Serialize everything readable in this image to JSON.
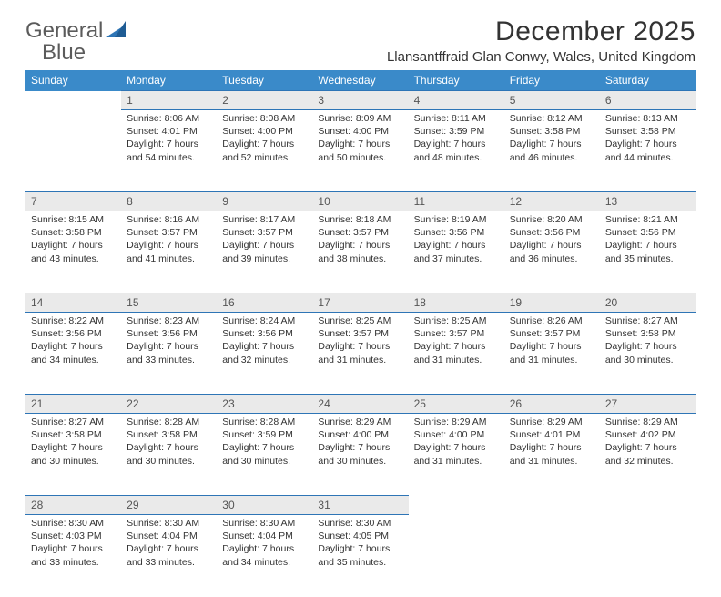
{
  "brand": {
    "part1": "General",
    "part2": "Blue"
  },
  "title": "December 2025",
  "location": "Llansantffraid Glan Conwy, Wales, United Kingdom",
  "colors": {
    "header_bg": "#3a8ac9",
    "header_text": "#ffffff",
    "grid_line": "#2e75b6",
    "daynum_bg": "#eaeaea",
    "text": "#333333",
    "brand_blue": "#2e75b6",
    "brand_gray": "#5b5b5b",
    "page_bg": "#ffffff"
  },
  "typography": {
    "title_fontsize": 30,
    "location_fontsize": 15,
    "header_fontsize": 12,
    "cell_fontsize": 10.5,
    "daynum_fontsize": 12
  },
  "weekdays": [
    "Sunday",
    "Monday",
    "Tuesday",
    "Wednesday",
    "Thursday",
    "Friday",
    "Saturday"
  ],
  "weeks": [
    [
      null,
      {
        "n": "1",
        "sunrise": "Sunrise: 8:06 AM",
        "sunset": "Sunset: 4:01 PM",
        "day": "Daylight: 7 hours and 54 minutes."
      },
      {
        "n": "2",
        "sunrise": "Sunrise: 8:08 AM",
        "sunset": "Sunset: 4:00 PM",
        "day": "Daylight: 7 hours and 52 minutes."
      },
      {
        "n": "3",
        "sunrise": "Sunrise: 8:09 AM",
        "sunset": "Sunset: 4:00 PM",
        "day": "Daylight: 7 hours and 50 minutes."
      },
      {
        "n": "4",
        "sunrise": "Sunrise: 8:11 AM",
        "sunset": "Sunset: 3:59 PM",
        "day": "Daylight: 7 hours and 48 minutes."
      },
      {
        "n": "5",
        "sunrise": "Sunrise: 8:12 AM",
        "sunset": "Sunset: 3:58 PM",
        "day": "Daylight: 7 hours and 46 minutes."
      },
      {
        "n": "6",
        "sunrise": "Sunrise: 8:13 AM",
        "sunset": "Sunset: 3:58 PM",
        "day": "Daylight: 7 hours and 44 minutes."
      }
    ],
    [
      {
        "n": "7",
        "sunrise": "Sunrise: 8:15 AM",
        "sunset": "Sunset: 3:58 PM",
        "day": "Daylight: 7 hours and 43 minutes."
      },
      {
        "n": "8",
        "sunrise": "Sunrise: 8:16 AM",
        "sunset": "Sunset: 3:57 PM",
        "day": "Daylight: 7 hours and 41 minutes."
      },
      {
        "n": "9",
        "sunrise": "Sunrise: 8:17 AM",
        "sunset": "Sunset: 3:57 PM",
        "day": "Daylight: 7 hours and 39 minutes."
      },
      {
        "n": "10",
        "sunrise": "Sunrise: 8:18 AM",
        "sunset": "Sunset: 3:57 PM",
        "day": "Daylight: 7 hours and 38 minutes."
      },
      {
        "n": "11",
        "sunrise": "Sunrise: 8:19 AM",
        "sunset": "Sunset: 3:56 PM",
        "day": "Daylight: 7 hours and 37 minutes."
      },
      {
        "n": "12",
        "sunrise": "Sunrise: 8:20 AM",
        "sunset": "Sunset: 3:56 PM",
        "day": "Daylight: 7 hours and 36 minutes."
      },
      {
        "n": "13",
        "sunrise": "Sunrise: 8:21 AM",
        "sunset": "Sunset: 3:56 PM",
        "day": "Daylight: 7 hours and 35 minutes."
      }
    ],
    [
      {
        "n": "14",
        "sunrise": "Sunrise: 8:22 AM",
        "sunset": "Sunset: 3:56 PM",
        "day": "Daylight: 7 hours and 34 minutes."
      },
      {
        "n": "15",
        "sunrise": "Sunrise: 8:23 AM",
        "sunset": "Sunset: 3:56 PM",
        "day": "Daylight: 7 hours and 33 minutes."
      },
      {
        "n": "16",
        "sunrise": "Sunrise: 8:24 AM",
        "sunset": "Sunset: 3:56 PM",
        "day": "Daylight: 7 hours and 32 minutes."
      },
      {
        "n": "17",
        "sunrise": "Sunrise: 8:25 AM",
        "sunset": "Sunset: 3:57 PM",
        "day": "Daylight: 7 hours and 31 minutes."
      },
      {
        "n": "18",
        "sunrise": "Sunrise: 8:25 AM",
        "sunset": "Sunset: 3:57 PM",
        "day": "Daylight: 7 hours and 31 minutes."
      },
      {
        "n": "19",
        "sunrise": "Sunrise: 8:26 AM",
        "sunset": "Sunset: 3:57 PM",
        "day": "Daylight: 7 hours and 31 minutes."
      },
      {
        "n": "20",
        "sunrise": "Sunrise: 8:27 AM",
        "sunset": "Sunset: 3:58 PM",
        "day": "Daylight: 7 hours and 30 minutes."
      }
    ],
    [
      {
        "n": "21",
        "sunrise": "Sunrise: 8:27 AM",
        "sunset": "Sunset: 3:58 PM",
        "day": "Daylight: 7 hours and 30 minutes."
      },
      {
        "n": "22",
        "sunrise": "Sunrise: 8:28 AM",
        "sunset": "Sunset: 3:58 PM",
        "day": "Daylight: 7 hours and 30 minutes."
      },
      {
        "n": "23",
        "sunrise": "Sunrise: 8:28 AM",
        "sunset": "Sunset: 3:59 PM",
        "day": "Daylight: 7 hours and 30 minutes."
      },
      {
        "n": "24",
        "sunrise": "Sunrise: 8:29 AM",
        "sunset": "Sunset: 4:00 PM",
        "day": "Daylight: 7 hours and 30 minutes."
      },
      {
        "n": "25",
        "sunrise": "Sunrise: 8:29 AM",
        "sunset": "Sunset: 4:00 PM",
        "day": "Daylight: 7 hours and 31 minutes."
      },
      {
        "n": "26",
        "sunrise": "Sunrise: 8:29 AM",
        "sunset": "Sunset: 4:01 PM",
        "day": "Daylight: 7 hours and 31 minutes."
      },
      {
        "n": "27",
        "sunrise": "Sunrise: 8:29 AM",
        "sunset": "Sunset: 4:02 PM",
        "day": "Daylight: 7 hours and 32 minutes."
      }
    ],
    [
      {
        "n": "28",
        "sunrise": "Sunrise: 8:30 AM",
        "sunset": "Sunset: 4:03 PM",
        "day": "Daylight: 7 hours and 33 minutes."
      },
      {
        "n": "29",
        "sunrise": "Sunrise: 8:30 AM",
        "sunset": "Sunset: 4:04 PM",
        "day": "Daylight: 7 hours and 33 minutes."
      },
      {
        "n": "30",
        "sunrise": "Sunrise: 8:30 AM",
        "sunset": "Sunset: 4:04 PM",
        "day": "Daylight: 7 hours and 34 minutes."
      },
      {
        "n": "31",
        "sunrise": "Sunrise: 8:30 AM",
        "sunset": "Sunset: 4:05 PM",
        "day": "Daylight: 7 hours and 35 minutes."
      },
      null,
      null,
      null
    ]
  ]
}
